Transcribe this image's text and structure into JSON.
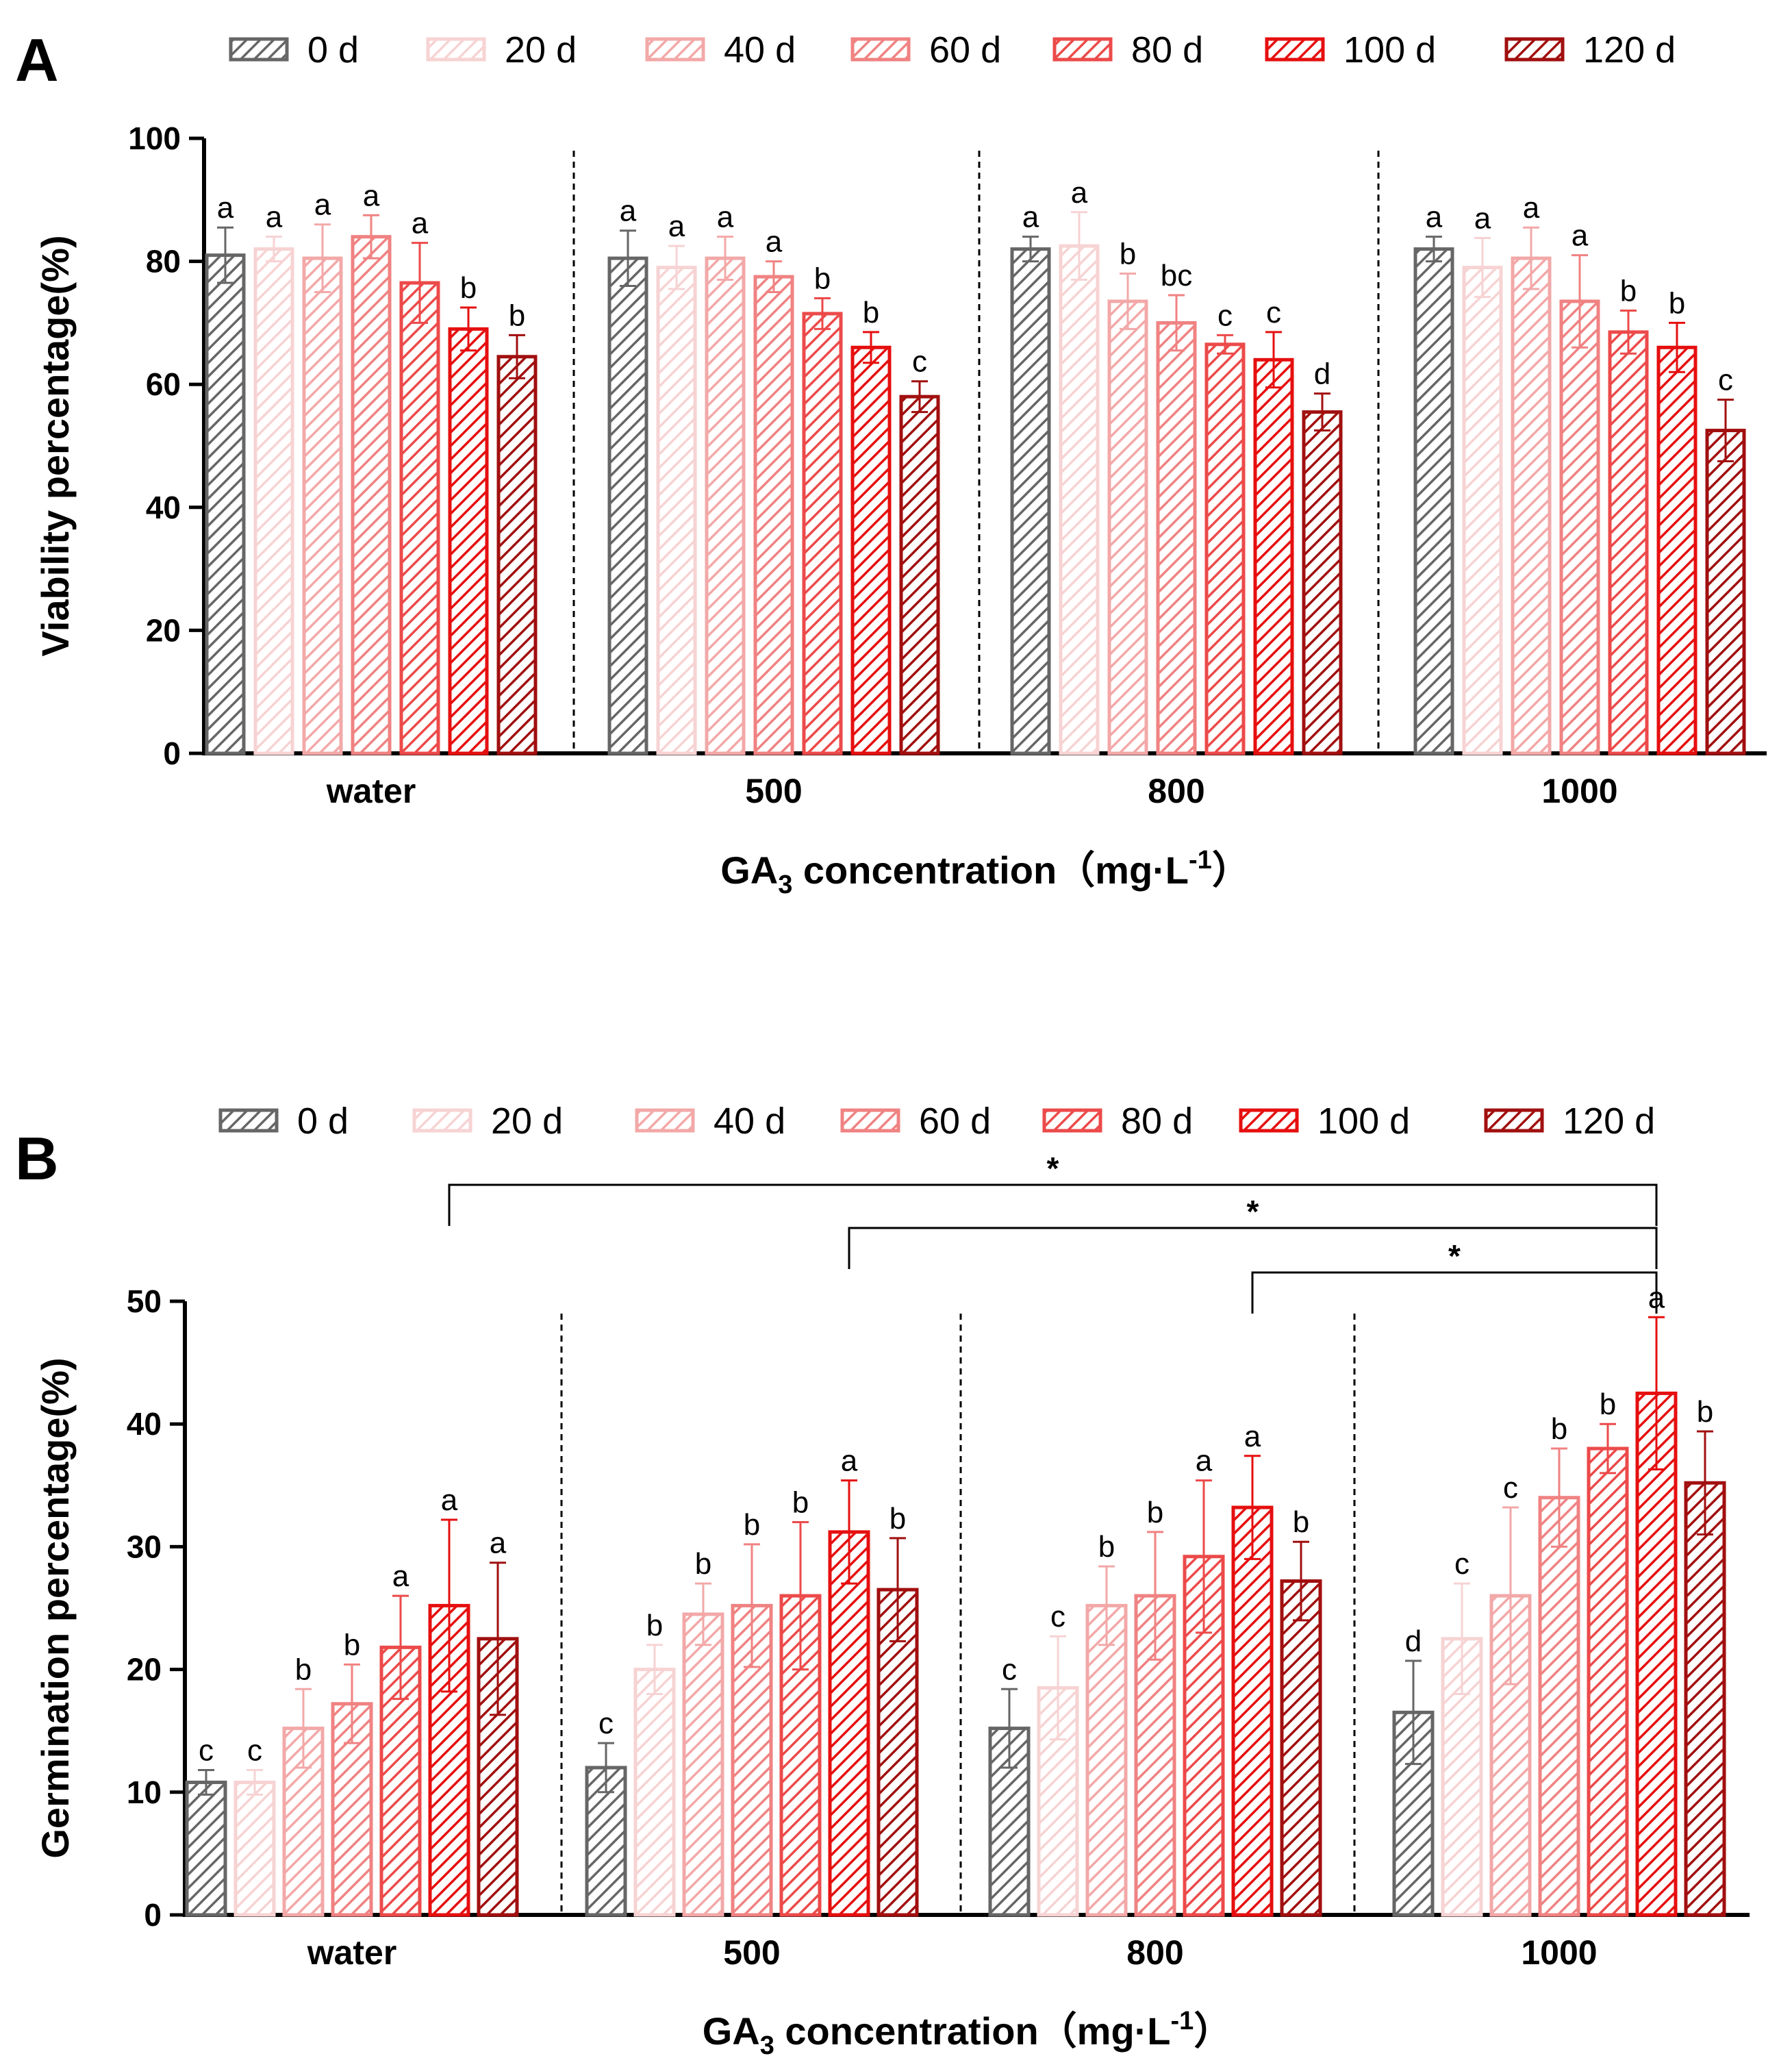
{
  "figure": {
    "series": [
      {
        "name": "0 d",
        "color": "#666666"
      },
      {
        "name": "20 d",
        "color": "#f7d3d3"
      },
      {
        "name": "40 d",
        "color": "#f3a8a8"
      },
      {
        "name": "60 d",
        "color": "#f08282"
      },
      {
        "name": "80 d",
        "color": "#ec4a4a"
      },
      {
        "name": "100 d",
        "color": "#e60f0f"
      },
      {
        "name": "120 d",
        "color": "#a10f0f"
      }
    ]
  },
  "chart_data": [
    {
      "type": "bar",
      "panel": "A",
      "title": "",
      "xlabel_main": "GA",
      "xlabel_sub": "3",
      "xlabel_rest": " concentration（mg·L",
      "xlabel_sup": "-1",
      "xlabel_close": "）",
      "ylabel": "Viability percentage(%)",
      "ylim": [
        0,
        100
      ],
      "yticks": [
        0,
        20,
        40,
        60,
        80,
        100
      ],
      "grid": false,
      "legend": "top",
      "categories": [
        "water",
        "500",
        "800",
        "1000"
      ],
      "series": [
        {
          "name": "0 d",
          "values": [
            81.0,
            80.5,
            82.0,
            82.0
          ],
          "errors": [
            4.5,
            4.5,
            2.0,
            2.0
          ],
          "letters": [
            "a",
            "a",
            "a",
            "a"
          ]
        },
        {
          "name": "20 d",
          "values": [
            82.0,
            79.0,
            82.5,
            79.0
          ],
          "errors": [
            2.0,
            3.5,
            5.5,
            4.8
          ],
          "letters": [
            "a",
            "a",
            "a",
            "a"
          ]
        },
        {
          "name": "40 d",
          "values": [
            80.5,
            80.5,
            73.5,
            80.5
          ],
          "errors": [
            5.5,
            3.5,
            4.5,
            5.0
          ],
          "letters": [
            "a",
            "a",
            "b",
            "a"
          ]
        },
        {
          "name": "60 d",
          "values": [
            84.0,
            77.5,
            70.0,
            73.5
          ],
          "errors": [
            3.5,
            2.5,
            4.5,
            7.5
          ],
          "letters": [
            "a",
            "a",
            "bc",
            "a"
          ]
        },
        {
          "name": "80 d",
          "values": [
            76.5,
            71.5,
            66.5,
            68.5
          ],
          "errors": [
            6.5,
            2.5,
            1.5,
            3.5
          ],
          "letters": [
            "a",
            "b",
            "c",
            "b"
          ]
        },
        {
          "name": "100 d",
          "values": [
            69.0,
            66.0,
            64.0,
            66.0
          ],
          "errors": [
            3.5,
            2.5,
            4.5,
            4.0
          ],
          "letters": [
            "b",
            "b",
            "c",
            "b"
          ]
        },
        {
          "name": "120 d",
          "values": [
            64.5,
            58.0,
            55.5,
            52.5
          ],
          "errors": [
            3.5,
            2.5,
            3.0,
            5.0
          ],
          "letters": [
            "b",
            "c",
            "d",
            "c"
          ]
        }
      ]
    },
    {
      "type": "bar",
      "panel": "B",
      "title": "",
      "xlabel_main": "GA",
      "xlabel_sub": "3",
      "xlabel_rest": " concentration（mg·L",
      "xlabel_sup": "-1",
      "xlabel_close": "）",
      "ylabel": "Germination percentage(%)",
      "ylim": [
        0,
        50
      ],
      "yticks": [
        0,
        10,
        20,
        30,
        40,
        50
      ],
      "grid": false,
      "legend": "top",
      "categories": [
        "water",
        "500",
        "800",
        "1000"
      ],
      "series": [
        {
          "name": "0 d",
          "values": [
            10.8,
            12.0,
            15.2,
            16.5
          ],
          "errors": [
            1.0,
            2.0,
            3.2,
            4.2
          ],
          "letters": [
            "c",
            "c",
            "c",
            "d"
          ]
        },
        {
          "name": "20 d",
          "values": [
            10.8,
            20.0,
            18.5,
            22.5
          ],
          "errors": [
            1.0,
            2.0,
            4.2,
            4.5
          ],
          "letters": [
            "c",
            "b",
            "c",
            "c"
          ]
        },
        {
          "name": "40 d",
          "values": [
            15.2,
            24.5,
            25.2,
            26.0
          ],
          "errors": [
            3.2,
            2.5,
            3.2,
            7.2
          ],
          "letters": [
            "b",
            "b",
            "b",
            "c"
          ]
        },
        {
          "name": "60 d",
          "values": [
            17.2,
            25.2,
            26.0,
            34.0
          ],
          "errors": [
            3.2,
            5.0,
            5.2,
            4.0
          ],
          "letters": [
            "b",
            "b",
            "b",
            "b"
          ]
        },
        {
          "name": "80 d",
          "values": [
            21.8,
            26.0,
            29.2,
            38.0
          ],
          "errors": [
            4.2,
            6.0,
            6.2,
            2.0
          ],
          "letters": [
            "a",
            "b",
            "a",
            "b"
          ]
        },
        {
          "name": "100 d",
          "values": [
            25.2,
            31.2,
            33.2,
            42.5
          ],
          "errors": [
            7.0,
            4.2,
            4.2,
            6.2
          ],
          "letters": [
            "a",
            "a",
            "a",
            "a"
          ]
        },
        {
          "name": "120 d",
          "values": [
            22.5,
            26.5,
            27.2,
            35.2
          ],
          "errors": [
            6.2,
            4.2,
            3.2,
            4.2
          ],
          "letters": [
            "a",
            "b",
            "b",
            "b"
          ]
        }
      ],
      "comparisons": [
        {
          "from": [
            "water",
            "100 d"
          ],
          "to": [
            "1000",
            "100 d"
          ],
          "label": "*"
        },
        {
          "from": [
            "500",
            "100 d"
          ],
          "to": [
            "1000",
            "100 d"
          ],
          "label": "*"
        },
        {
          "from": [
            "800",
            "100 d"
          ],
          "to": [
            "1000",
            "100 d"
          ],
          "label": "*"
        }
      ]
    }
  ]
}
